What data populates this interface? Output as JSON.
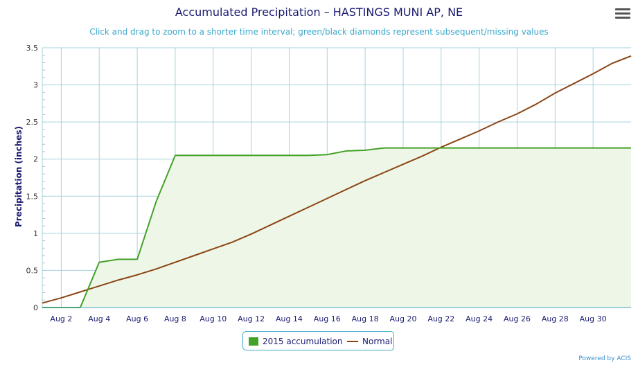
{
  "title": "Accumulated Precipitation – HASTINGS MUNI AP, NE",
  "subtitle": "Click and drag to zoom to a shorter time interval; green/black diamonds represent subsequent/missing values",
  "credit": "Powered by ACIS",
  "colors": {
    "accumulation_line": "#43a127",
    "accumulation_fill": "#eef6e8",
    "normal_line": "#8b4513",
    "grid": "#a9d1e0",
    "axis": "#4aa3c8",
    "text": "#191970"
  },
  "chart_data": {
    "type": "line",
    "title": "Accumulated Precipitation – HASTINGS MUNI AP, NE",
    "ylabel": "Precipitation (inches)",
    "xlabel": "",
    "ylim": [
      0,
      3.5
    ],
    "xlim": [
      1,
      32
    ],
    "y_ticks": [
      0,
      0.5,
      1,
      1.5,
      2,
      2.5,
      3,
      3.5
    ],
    "y_tick_labels": [
      "0",
      "0.5",
      "1",
      "1.5",
      "2",
      "2.5",
      "3",
      "3.5"
    ],
    "x_ticks": [
      2,
      4,
      6,
      8,
      10,
      12,
      14,
      16,
      18,
      20,
      22,
      24,
      26,
      28,
      30
    ],
    "x_tick_labels": [
      "Aug 2",
      "Aug 4",
      "Aug 6",
      "Aug 8",
      "Aug 10",
      "Aug 12",
      "Aug 14",
      "Aug 16",
      "Aug 18",
      "Aug 20",
      "Aug 22",
      "Aug 24",
      "Aug 26",
      "Aug 28",
      "Aug 30"
    ],
    "grid": true,
    "legend_position": "bottom-center",
    "series": [
      {
        "name": "2015 accumulation",
        "style": "area",
        "x": [
          1,
          2,
          3,
          4,
          5,
          6,
          7,
          8,
          9,
          10,
          11,
          12,
          13,
          14,
          15,
          16,
          17,
          18,
          19,
          20,
          21,
          22,
          23,
          24,
          25,
          26,
          27,
          28,
          29,
          30,
          31,
          32
        ],
        "values": [
          0,
          0,
          0,
          0.61,
          0.65,
          0.65,
          1.43,
          2.05,
          2.05,
          2.05,
          2.05,
          2.05,
          2.05,
          2.05,
          2.05,
          2.06,
          2.11,
          2.12,
          2.15,
          2.15,
          2.15,
          2.15,
          2.15,
          2.15,
          2.15,
          2.15,
          2.15,
          2.15,
          2.15,
          2.15,
          2.15,
          2.15
        ]
      },
      {
        "name": "Normal",
        "style": "line",
        "x": [
          1,
          2,
          3,
          4,
          5,
          6,
          7,
          8,
          9,
          10,
          11,
          12,
          13,
          14,
          15,
          16,
          17,
          18,
          19,
          20,
          21,
          22,
          23,
          24,
          25,
          26,
          27,
          28,
          29,
          30,
          31,
          32
        ],
        "values": [
          0.06,
          0.13,
          0.21,
          0.29,
          0.37,
          0.44,
          0.52,
          0.61,
          0.7,
          0.79,
          0.88,
          0.99,
          1.11,
          1.23,
          1.35,
          1.47,
          1.59,
          1.71,
          1.82,
          1.93,
          2.04,
          2.16,
          2.27,
          2.38,
          2.5,
          2.61,
          2.74,
          2.89,
          3.02,
          3.15,
          3.29,
          3.39
        ]
      }
    ]
  }
}
